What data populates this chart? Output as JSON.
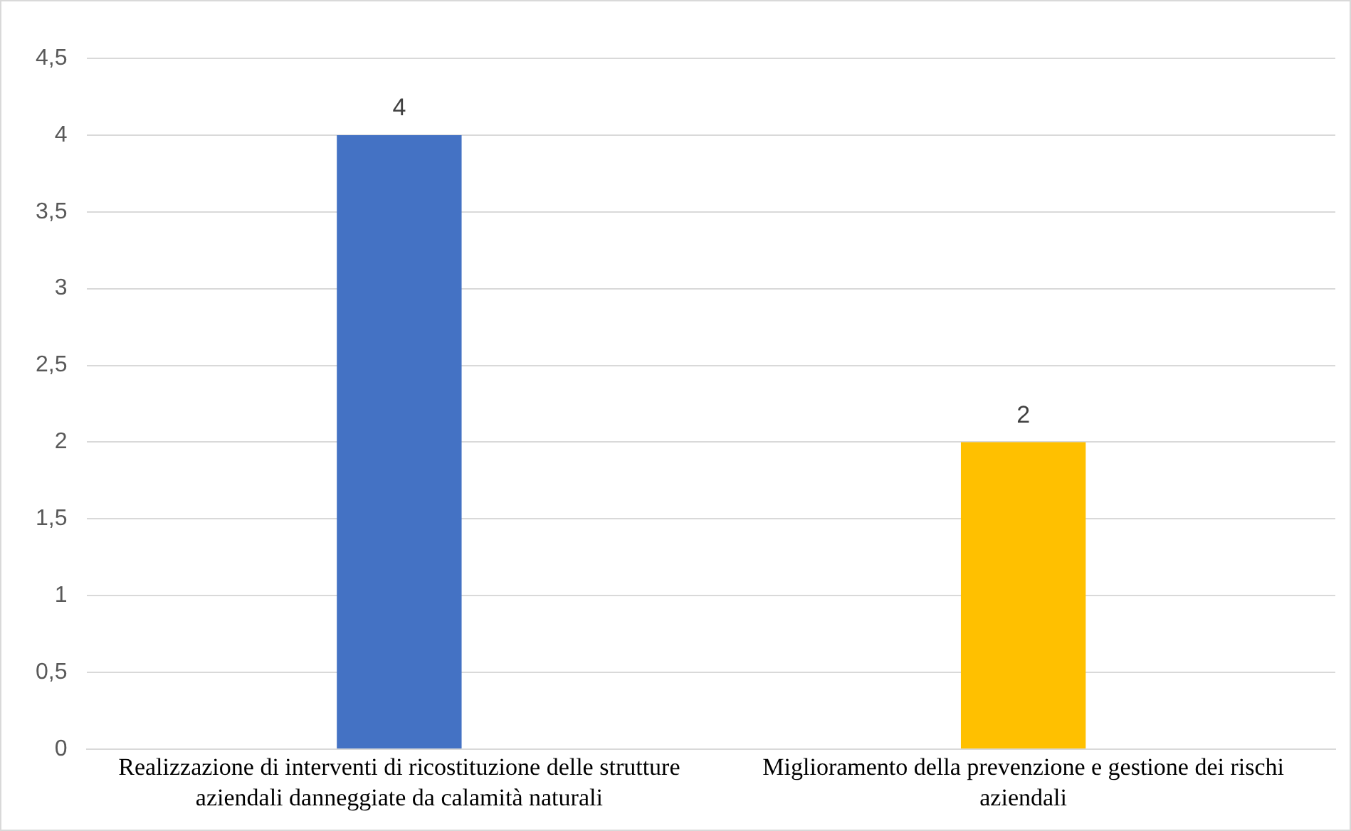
{
  "chart_data": {
    "type": "bar",
    "categories": [
      "Realizzazione di interventi di ricostituzione delle strutture aziendali danneggiate da calamità naturali",
      "Miglioramento della prevenzione e gestione dei rischi aziendali"
    ],
    "values": [
      4,
      2
    ],
    "colors": [
      "#4472c4",
      "#ffc000"
    ],
    "ylim": [
      0,
      4.5
    ],
    "yticks": [
      {
        "value": 0,
        "label": "0"
      },
      {
        "value": 0.5,
        "label": "0,5"
      },
      {
        "value": 1,
        "label": "1"
      },
      {
        "value": 1.5,
        "label": "1,5"
      },
      {
        "value": 2,
        "label": "2"
      },
      {
        "value": 2.5,
        "label": "2,5"
      },
      {
        "value": 3,
        "label": "3"
      },
      {
        "value": 3.5,
        "label": "3,5"
      },
      {
        "value": 4,
        "label": "4"
      },
      {
        "value": 4.5,
        "label": "4,5"
      }
    ],
    "grid": "y",
    "data_labels": true
  }
}
